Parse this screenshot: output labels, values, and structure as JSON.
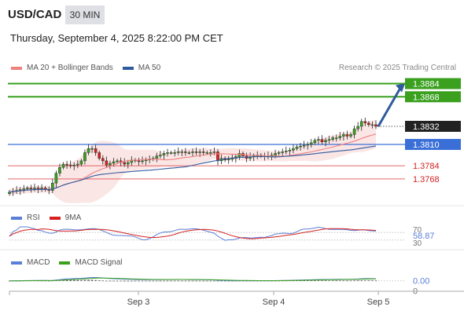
{
  "header": {
    "symbol": "USD/CAD",
    "timeframe": "30 MIN",
    "datetime": "Thursday, September 4, 2025 8:22:00 PM CET"
  },
  "legend": {
    "main": [
      {
        "name": "MA 20 + Bollinger Bands",
        "color": "#f08080"
      },
      {
        "name": "MA 50",
        "color": "#2f5a9e"
      }
    ],
    "rsi": [
      {
        "name": "RSI",
        "color": "#5b7fd6"
      },
      {
        "name": "9MA",
        "color": "#d62020"
      }
    ],
    "macd": [
      {
        "name": "MACD",
        "color": "#5b7fd6"
      },
      {
        "name": "MACD Signal",
        "color": "#3aa01e"
      }
    ]
  },
  "credit": "Research © 2025 Trading Central",
  "chart_data": {
    "type": "candlestick",
    "symbol": "USD/CAD",
    "ylim": [
      1.3745,
      1.3895
    ],
    "x_ticks": [
      "Sep 3",
      "Sep 4",
      "Sep 5"
    ],
    "candles_close": [
      1.3752,
      1.3753,
      1.3754,
      1.3755,
      1.3756,
      1.3757,
      1.3756,
      1.3757,
      1.3756,
      1.3757,
      1.3755,
      1.3754,
      1.3763,
      1.3775,
      1.3782,
      1.3786,
      1.3785,
      1.3784,
      1.3785,
      1.3786,
      1.379,
      1.38,
      1.3805,
      1.3805,
      1.38,
      1.3793,
      1.379,
      1.3785,
      1.3787,
      1.3789,
      1.379,
      1.3788,
      1.3786,
      1.3788,
      1.3791,
      1.379,
      1.3789,
      1.379,
      1.3791,
      1.3792,
      1.3793,
      1.3796,
      1.3797,
      1.3799,
      1.38,
      1.38,
      1.38,
      1.3801,
      1.3801,
      1.38,
      1.38,
      1.3801,
      1.38,
      1.3801,
      1.38,
      1.38,
      1.38,
      1.3801,
      1.379,
      1.3793,
      1.3791,
      1.3792,
      1.3793,
      1.3795,
      1.3799,
      1.3796,
      1.3793,
      1.3795,
      1.3796,
      1.3797,
      1.3796,
      1.3795,
      1.3796,
      1.3797,
      1.3799,
      1.38,
      1.3801,
      1.3802,
      1.3803,
      1.3805,
      1.3807,
      1.3808,
      1.3809,
      1.381,
      1.3812,
      1.3815,
      1.3816,
      1.3813,
      1.3815,
      1.3816,
      1.3818,
      1.3818,
      1.382,
      1.3822,
      1.382,
      1.3822,
      1.3829,
      1.3832,
      1.3838,
      1.3836,
      1.3834,
      1.3834,
      1.3832
    ],
    "levels": [
      {
        "label": "1.3884",
        "value": 1.3884,
        "style": "green-thick",
        "label_bg": "#3aa01e"
      },
      {
        "label": "1.3868",
        "value": 1.3868,
        "style": "green-thick",
        "label_bg": "#3aa01e"
      },
      {
        "label": "1.3832",
        "value": 1.3832,
        "style": "last-price",
        "label_bg": "#222222"
      },
      {
        "label": "1.3810",
        "value": 1.381,
        "style": "blue-pivot",
        "label_bg": "#3a6fd8"
      },
      {
        "label": "1.3784",
        "value": 1.3784,
        "style": "red-thin",
        "label_bg": "none"
      },
      {
        "label": "1.3768",
        "value": 1.3768,
        "style": "red-thin",
        "label_bg": "none"
      }
    ],
    "rsi": {
      "last": 58.87,
      "last_label": "58.87",
      "band_labels": [
        "70",
        "30"
      ],
      "ylim": [
        0,
        100
      ]
    },
    "macd": {
      "last": 0.0,
      "last_label": "0.00",
      "zero_label": "0",
      "ylim": [
        -0.003,
        0.004
      ]
    }
  }
}
